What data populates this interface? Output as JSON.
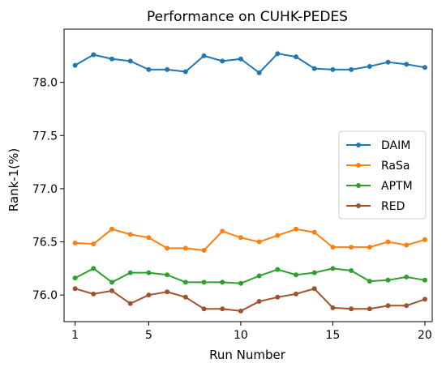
{
  "chart_data": {
    "type": "line",
    "title": "Performance on CUHK-PEDES",
    "xlabel": "Run Number",
    "ylabel": "Rank-1(%)",
    "xlim": [
      0.4,
      20.4
    ],
    "ylim": [
      75.75,
      78.5
    ],
    "xticks": [
      1,
      5,
      10,
      15,
      20
    ],
    "yticks": [
      76.0,
      76.5,
      77.0,
      77.5,
      78.0
    ],
    "ytick_labels": [
      "76.0",
      "76.5",
      "77.0",
      "77.5",
      "78.0"
    ],
    "legend_position": "center-right",
    "grid": false,
    "x": [
      1,
      2,
      3,
      4,
      5,
      6,
      7,
      8,
      9,
      10,
      11,
      12,
      13,
      14,
      15,
      16,
      17,
      18,
      19,
      20
    ],
    "series": [
      {
        "name": "DAIM",
        "color": "#1f77b4",
        "values": [
          78.16,
          78.26,
          78.22,
          78.2,
          78.12,
          78.12,
          78.1,
          78.25,
          78.2,
          78.22,
          78.09,
          78.27,
          78.24,
          78.13,
          78.12,
          78.12,
          78.15,
          78.19,
          78.17,
          78.14
        ]
      },
      {
        "name": "RaSa",
        "color": "#ff7f0e",
        "values": [
          76.49,
          76.48,
          76.62,
          76.57,
          76.54,
          76.44,
          76.44,
          76.42,
          76.6,
          76.54,
          76.5,
          76.56,
          76.62,
          76.59,
          76.45,
          76.45,
          76.45,
          76.5,
          76.47,
          76.52
        ]
      },
      {
        "name": "APTM",
        "color": "#2ca02c",
        "values": [
          76.16,
          76.25,
          76.12,
          76.21,
          76.21,
          76.19,
          76.12,
          76.12,
          76.12,
          76.11,
          76.18,
          76.24,
          76.19,
          76.21,
          76.25,
          76.23,
          76.13,
          76.14,
          76.17,
          76.14
        ]
      },
      {
        "name": "RED",
        "color": "#a0522d",
        "values": [
          76.06,
          76.01,
          76.04,
          75.92,
          76.0,
          76.03,
          75.98,
          75.87,
          75.87,
          75.85,
          75.94,
          75.98,
          76.01,
          76.06,
          75.88,
          75.87,
          75.87,
          75.9,
          75.9,
          75.96
        ]
      }
    ]
  }
}
